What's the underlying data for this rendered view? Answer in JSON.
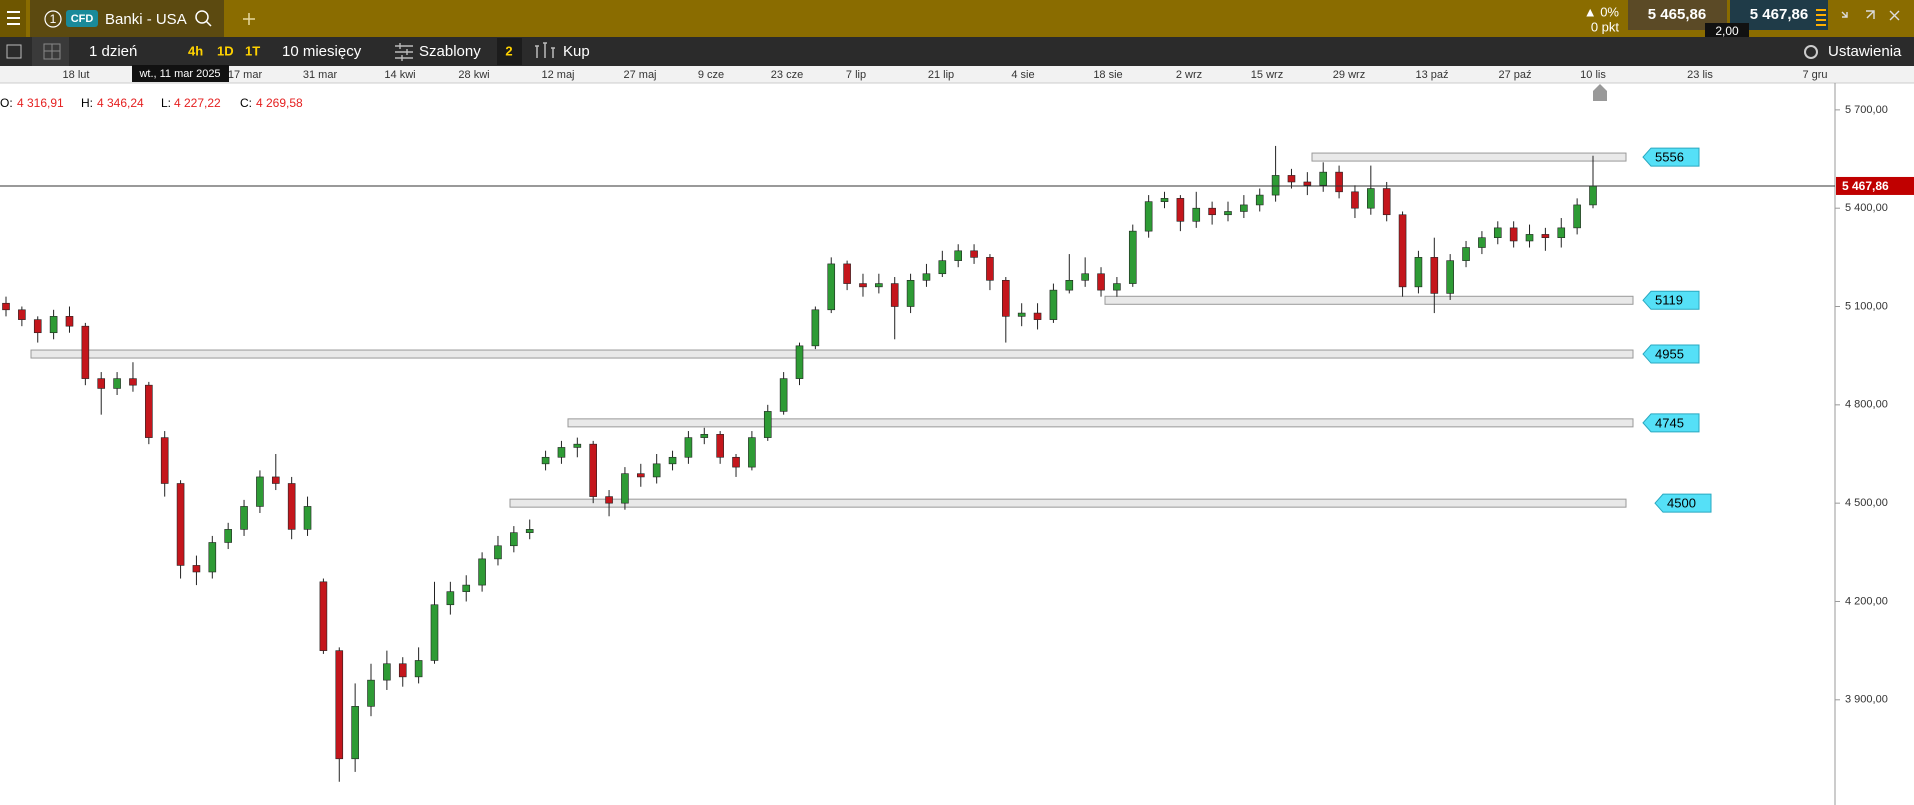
{
  "ui": {
    "instrument_no": "1",
    "badge": "CFD",
    "instrument": "Banki - USA",
    "change_pct": "▲ 0%",
    "change_pts": "0 pkt",
    "bid": "5 465,86",
    "ask": "5 467,86",
    "spread": "2,00",
    "interval": "1 dzień",
    "tf_4h": "4h",
    "tf_1d": "1D",
    "tf_1t": "1T",
    "range": "10 miesięcy",
    "templates": "Szablony",
    "templates_count": "2",
    "buy": "Kup",
    "settings": "Ustawienia",
    "tooltip": "wt., 11 mar 2025",
    "readout": [
      {
        "key": "O:",
        "value": "4 316,91"
      },
      {
        "key": "H:",
        "value": "4 346,24"
      },
      {
        "key": "L:",
        "value": "4 227,22"
      },
      {
        "key": "C:",
        "value": "4 269,58"
      }
    ]
  },
  "chart_data": {
    "type": "candlestick",
    "up_color": "#2e9b35",
    "down_color": "#c4161c",
    "dates": [
      "18 lut",
      "17 mar",
      "31 mar",
      "14 kwi",
      "28 kwi",
      "12 maj",
      "27 maj",
      "9 cze",
      "23 cze",
      "7 lip",
      "21 lip",
      "4 sie",
      "18 sie",
      "2 wrz",
      "15 wrz",
      "29 wrz",
      "13 paź",
      "27 paź",
      "10 lis",
      "23 lis",
      "7 gru"
    ],
    "ylim": [
      3579,
      5782
    ],
    "yticks": [
      {
        "value": 5700,
        "label": "5 700,00"
      },
      {
        "value": 5400,
        "label": "5 400,00"
      },
      {
        "value": 5100,
        "label": "5 100,00"
      },
      {
        "value": 4800,
        "label": "4 800,00"
      },
      {
        "value": 4500,
        "label": "4 500,00"
      },
      {
        "value": 4200,
        "label": "4 200,00"
      },
      {
        "value": 3900,
        "label": "3 900,00"
      }
    ],
    "last_price": {
      "value": 5467.86,
      "label": "5 467,86"
    },
    "zones": [
      5556,
      5119,
      4955,
      4745,
      4500
    ],
    "ohlc": [
      [
        5110,
        5130,
        5070,
        5090
      ],
      [
        5090,
        5100,
        5040,
        5060
      ],
      [
        5060,
        5070,
        4990,
        5020
      ],
      [
        5020,
        5090,
        5000,
        5070
      ],
      [
        5070,
        5100,
        5020,
        5040
      ],
      [
        5040,
        5050,
        4860,
        4880
      ],
      [
        4880,
        4900,
        4770,
        4850
      ],
      [
        4850,
        4900,
        4830,
        4880
      ],
      [
        4880,
        4930,
        4840,
        4860
      ],
      [
        4860,
        4870,
        4680,
        4700
      ],
      [
        4700,
        4720,
        4520,
        4560
      ],
      [
        4560,
        4570,
        4270,
        4310
      ],
      [
        4310,
        4340,
        4250,
        4290
      ],
      [
        4290,
        4400,
        4270,
        4380
      ],
      [
        4380,
        4440,
        4360,
        4420
      ],
      [
        4420,
        4510,
        4400,
        4490
      ],
      [
        4490,
        4600,
        4470,
        4580
      ],
      [
        4580,
        4650,
        4540,
        4560
      ],
      [
        4560,
        4580,
        4390,
        4420
      ],
      [
        4420,
        4520,
        4400,
        4490
      ],
      [
        4260,
        4270,
        4040,
        4050
      ],
      [
        4050,
        4060,
        3650,
        3720
      ],
      [
        3720,
        3950,
        3680,
        3880
      ],
      [
        3880,
        4010,
        3850,
        3960
      ],
      [
        3960,
        4050,
        3930,
        4010
      ],
      [
        4010,
        4030,
        3940,
        3970
      ],
      [
        3970,
        4060,
        3950,
        4020
      ],
      [
        4020,
        4260,
        4010,
        4190
      ],
      [
        4190,
        4260,
        4160,
        4230
      ],
      [
        4230,
        4280,
        4200,
        4250
      ],
      [
        4250,
        4350,
        4230,
        4330
      ],
      [
        4330,
        4400,
        4310,
        4370
      ],
      [
        4370,
        4430,
        4350,
        4410
      ],
      [
        4410,
        4450,
        4390,
        4420
      ],
      [
        4620,
        4660,
        4600,
        4640
      ],
      [
        4640,
        4690,
        4620,
        4670
      ],
      [
        4670,
        4700,
        4640,
        4680
      ],
      [
        4680,
        4690,
        4500,
        4520
      ],
      [
        4520,
        4540,
        4460,
        4500
      ],
      [
        4500,
        4610,
        4480,
        4590
      ],
      [
        4590,
        4620,
        4550,
        4580
      ],
      [
        4580,
        4650,
        4560,
        4620
      ],
      [
        4620,
        4660,
        4600,
        4640
      ],
      [
        4640,
        4720,
        4620,
        4700
      ],
      [
        4700,
        4730,
        4680,
        4710
      ],
      [
        4710,
        4720,
        4620,
        4640
      ],
      [
        4640,
        4650,
        4580,
        4610
      ],
      [
        4610,
        4720,
        4600,
        4700
      ],
      [
        4700,
        4800,
        4690,
        4780
      ],
      [
        4780,
        4900,
        4770,
        4880
      ],
      [
        4880,
        4990,
        4860,
        4980
      ],
      [
        4980,
        5100,
        4970,
        5090
      ],
      [
        5090,
        5250,
        5080,
        5230
      ],
      [
        5230,
        5240,
        5150,
        5170
      ],
      [
        5170,
        5200,
        5130,
        5160
      ],
      [
        5160,
        5200,
        5140,
        5170
      ],
      [
        5170,
        5190,
        5000,
        5100
      ],
      [
        5100,
        5200,
        5080,
        5180
      ],
      [
        5180,
        5230,
        5160,
        5200
      ],
      [
        5200,
        5270,
        5190,
        5240
      ],
      [
        5240,
        5290,
        5220,
        5270
      ],
      [
        5270,
        5290,
        5230,
        5250
      ],
      [
        5250,
        5260,
        5150,
        5180
      ],
      [
        5180,
        5190,
        4990,
        5070
      ],
      [
        5070,
        5110,
        5040,
        5080
      ],
      [
        5080,
        5110,
        5030,
        5060
      ],
      [
        5060,
        5170,
        5050,
        5150
      ],
      [
        5150,
        5260,
        5140,
        5180
      ],
      [
        5180,
        5250,
        5160,
        5200
      ],
      [
        5200,
        5220,
        5130,
        5150
      ],
      [
        5150,
        5190,
        5130,
        5170
      ],
      [
        5170,
        5350,
        5160,
        5330
      ],
      [
        5330,
        5440,
        5310,
        5420
      ],
      [
        5420,
        5450,
        5400,
        5430
      ],
      [
        5430,
        5440,
        5330,
        5360
      ],
      [
        5360,
        5450,
        5340,
        5400
      ],
      [
        5400,
        5420,
        5350,
        5380
      ],
      [
        5380,
        5420,
        5360,
        5390
      ],
      [
        5390,
        5440,
        5370,
        5410
      ],
      [
        5410,
        5460,
        5390,
        5440
      ],
      [
        5440,
        5590,
        5420,
        5500
      ],
      [
        5500,
        5520,
        5460,
        5480
      ],
      [
        5480,
        5510,
        5440,
        5470
      ],
      [
        5470,
        5540,
        5450,
        5510
      ],
      [
        5510,
        5530,
        5430,
        5450
      ],
      [
        5450,
        5470,
        5370,
        5400
      ],
      [
        5400,
        5530,
        5380,
        5460
      ],
      [
        5460,
        5480,
        5360,
        5380
      ],
      [
        5380,
        5390,
        5130,
        5160
      ],
      [
        5160,
        5270,
        5140,
        5250
      ],
      [
        5250,
        5310,
        5080,
        5140
      ],
      [
        5140,
        5260,
        5120,
        5240
      ],
      [
        5240,
        5300,
        5220,
        5280
      ],
      [
        5280,
        5330,
        5260,
        5310
      ],
      [
        5310,
        5360,
        5290,
        5340
      ],
      [
        5340,
        5360,
        5280,
        5300
      ],
      [
        5300,
        5350,
        5280,
        5320
      ],
      [
        5320,
        5340,
        5270,
        5310
      ],
      [
        5310,
        5370,
        5280,
        5340
      ],
      [
        5340,
        5430,
        5320,
        5410
      ],
      [
        5410,
        5560,
        5400,
        5468
      ]
    ]
  }
}
